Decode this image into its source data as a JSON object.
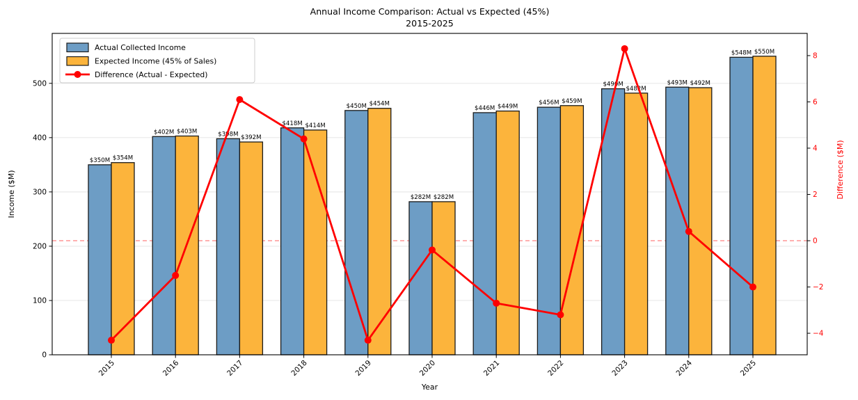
{
  "figure": {
    "title_line1": "Annual Income Comparison: Actual vs Expected (45%)",
    "title_line2": "2015-2025"
  },
  "chart_data": {
    "type": "bar",
    "title": "Annual Income Comparison: Actual vs Expected (45%) 2015-2025",
    "categories": [
      "2015",
      "2016",
      "2017",
      "2018",
      "2019",
      "2020",
      "2021",
      "2022",
      "2023",
      "2024",
      "2025"
    ],
    "series": [
      {
        "name": "Actual Collected Income",
        "type": "bar",
        "axis": "left",
        "color": "#6d9dc5",
        "edge_color": "#1a1a1a",
        "values": [
          350,
          402,
          398,
          418,
          450,
          282,
          446,
          456,
          490,
          493,
          548
        ],
        "labels": [
          "$350M",
          "$402M",
          "$398M",
          "$418M",
          "$450M",
          "$282M",
          "$446M",
          "$456M",
          "$490M",
          "$493M",
          "$548M"
        ]
      },
      {
        "name": "Expected Income (45% of Sales)",
        "type": "bar",
        "axis": "left",
        "color": "#fcb43c",
        "edge_color": "#1a1a1a",
        "values": [
          354,
          403,
          392,
          414,
          454,
          282,
          449,
          459,
          482,
          492,
          550
        ],
        "labels": [
          "$354M",
          "$403M",
          "$392M",
          "$414M",
          "$454M",
          "$282M",
          "$449M",
          "$459M",
          "$482M",
          "$492M",
          "$550M"
        ]
      },
      {
        "name": "Difference (Actual - Expected)",
        "type": "line",
        "axis": "right",
        "color": "#ff0000",
        "values": [
          -4.3,
          -1.5,
          6.1,
          4.4,
          -4.3,
          -0.4,
          -2.7,
          -3.2,
          8.3,
          0.4,
          -2.0
        ]
      }
    ],
    "xlabel": "Year",
    "ylabel_left": "Income ($M)",
    "ylabel_right": "Difference ($M)",
    "left_ticks": [
      0,
      100,
      200,
      300,
      400,
      500
    ],
    "right_ticks": [
      8,
      6,
      4,
      2,
      0,
      -2,
      -4
    ],
    "left_ylim": [
      0,
      592
    ],
    "right_ylim": [
      -4.93,
      8.96
    ],
    "grid": true,
    "legend_position": "upper left",
    "x_tick_rotation": 45,
    "zero_reference_line": {
      "axis": "right",
      "value": 0,
      "style": "dashed",
      "color": "#ff8080"
    },
    "colors": {
      "right_axis_text": "#ff0000",
      "left_axis_text": "#000000",
      "grid": "#e3e3e3",
      "frame": "#000000"
    }
  }
}
